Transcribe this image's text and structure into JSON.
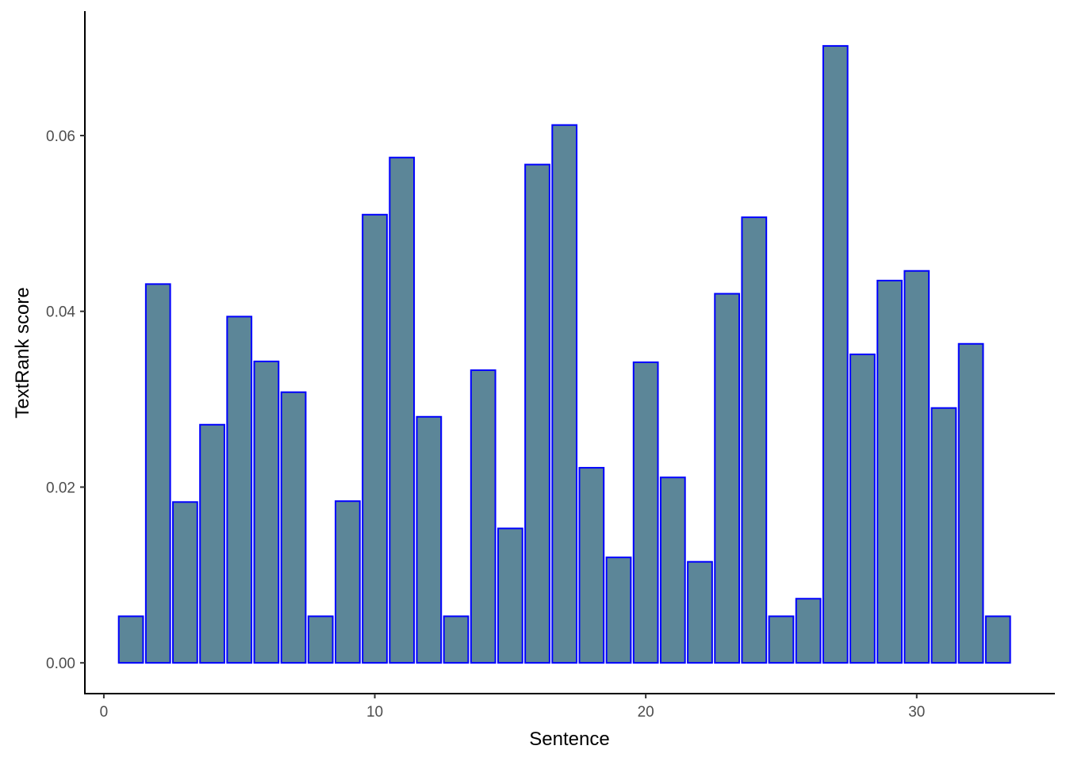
{
  "chart_data": {
    "type": "bar",
    "xlabel": "Sentence",
    "ylabel": "TextRank score",
    "x": [
      1,
      2,
      3,
      4,
      5,
      6,
      7,
      8,
      9,
      10,
      11,
      12,
      13,
      14,
      15,
      16,
      17,
      18,
      19,
      20,
      21,
      22,
      23,
      24,
      25,
      26,
      27,
      28,
      29,
      30,
      31,
      32,
      33
    ],
    "values": [
      0.0053,
      0.0431,
      0.0183,
      0.0271,
      0.0394,
      0.0343,
      0.0308,
      0.0053,
      0.0184,
      0.051,
      0.0575,
      0.028,
      0.0053,
      0.0333,
      0.0153,
      0.0567,
      0.0612,
      0.0222,
      0.012,
      0.0342,
      0.0211,
      0.0115,
      0.042,
      0.0507,
      0.0053,
      0.0073,
      0.0702,
      0.0351,
      0.0435,
      0.0446,
      0.029,
      0.0363,
      0.0053
    ],
    "xlim": [
      -0.7,
      35.1
    ],
    "ylim": [
      -0.0035,
      0.0738
    ],
    "xticks": [
      0,
      10,
      20,
      30
    ],
    "yticks": [
      0.0,
      0.02,
      0.04,
      0.06
    ],
    "ytick_labels": [
      "0.00",
      "0.02",
      "0.04",
      "0.06"
    ],
    "bar_fill": "#5c8698",
    "bar_stroke": "#0000ff",
    "grid": false
  }
}
